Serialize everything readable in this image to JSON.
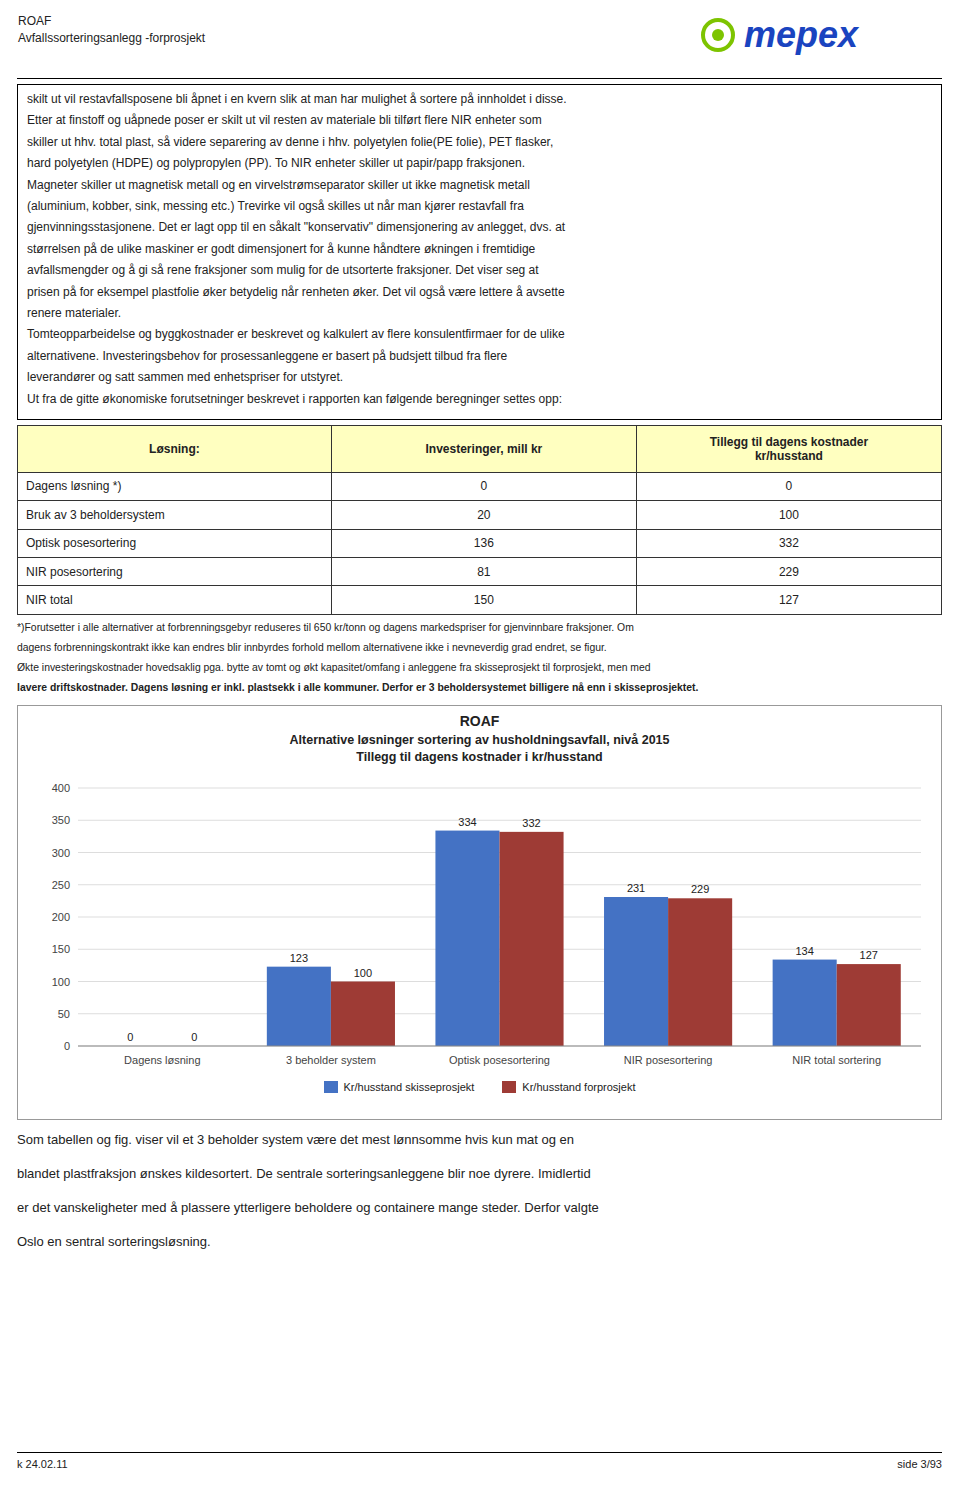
{
  "header": {
    "title": [
      "ROAF",
      "Avfallssorteringsanlegg -forprosjekt"
    ]
  },
  "logo": {
    "text": "mepex",
    "color": "#1A44C0",
    "mark_color": "#7DC400"
  },
  "body_lines": [
    "skilt ut vil restavfallsposene bli åpnet i en kvern slik at man har mulighet å sortere på innholdet i disse.",
    "Etter at finstoff og uåpnede poser er skilt ut vil resten av materiale bli tilført flere NIR enheter som",
    "skiller ut hhv. total plast, så videre separering av denne i hhv. polyetylen folie(PE folie), PET flasker,",
    "hard polyetylen (HDPE) og polypropylen (PP). To NIR enheter skiller ut papir/papp fraksjonen.",
    "Magneter skiller ut magnetisk metall og en virvelstrømseparator skiller ut ikke magnetisk metall",
    "(aluminium, kobber, sink, messing etc.) Trevirke vil også skilles ut når man kjører restavfall fra",
    "gjenvinningsstasjonene. Det er lagt opp til en såkalt \"konservativ\" dimensjonering av anlegget, dvs. at",
    "størrelsen på de ulike maskiner er godt dimensjonert for å kunne håndtere økningen i fremtidige",
    "avfallsmengder og å gi så rene fraksjoner som mulig for de utsorterte fraksjoner. Det viser seg at",
    "prisen på for eksempel plastfolie øker betydelig når renheten øker. Det vil også være lettere å avsette",
    "renere materialer.",
    "Tomteopparbeidelse og byggkostnader er beskrevet og kalkulert av flere konsulentfirmaer for de ulike",
    "alternativene. Investeringsbehov for prosessanleggene er basert på budsjett tilbud fra flere",
    "leverandører og satt sammen med enhetspriser for utstyret.",
    "Ut fra de gitte økonomiske forutsetninger beskrevet i rapporten kan følgende beregninger settes opp:"
  ],
  "table": {
    "header_color": "#FFFFC0",
    "header": [
      "Løsning:",
      "Investeringer, mill kr",
      "Tillegg til dagens kostnader\nkr/husstand"
    ],
    "rows": [
      [
        "Dagens løsning *)",
        "0",
        "0"
      ],
      [
        "Bruk av 3 beholdersystem",
        "20",
        "100"
      ],
      [
        "Optisk posesortering",
        "136",
        "332"
      ],
      [
        "NIR posesortering",
        "81",
        "229"
      ],
      [
        "NIR total",
        "150",
        "127"
      ]
    ]
  },
  "footnotes": [
    {
      "text": "*)Forutsetter i alle alternativer at forbrenningsgebyr reduseres til 650 kr/tonn og dagens markedspriser for gjenvinnbare fraksjoner. Om",
      "bold": false
    },
    {
      "text": "dagens forbrenningskontrakt ikke kan endres blir innbyrdes forhold mellom alternativene ikke i nevneverdig grad endret, se figur.",
      "bold": false
    },
    {
      "text": "Økte investeringskostnader hovedsaklig pga. bytte av tomt og økt kapasitet/omfang i anleggene fra skisseprosjekt til forprosjekt, men med",
      "bold": false
    },
    {
      "text": "lavere driftskostnader. Dagens løsning er inkl. plastsekk i alle kommuner. Derfor er 3 beholdersystemet billigere nå enn i skisseprosjektet.",
      "bold": true
    }
  ],
  "chart_data": {
    "type": "bar",
    "title": "ROAF",
    "subtitle": [
      "Alternative løsninger sortering av husholdningsavfall, nivå 2015",
      "Tillegg til dagens kostnader i kr/husstand"
    ],
    "categories": [
      "Dagens løsning",
      "3 beholder system",
      "Optisk posesortering",
      "NIR posesortering",
      "NIR total sortering"
    ],
    "series": [
      {
        "name": "Kr/husstand skisseprosjekt",
        "color": "#4472C4",
        "values": [
          0,
          123,
          334,
          231,
          134
        ]
      },
      {
        "name": "Kr/husstand forprosjekt",
        "color": "#9E3B35",
        "values": [
          0,
          100,
          332,
          229,
          127
        ]
      }
    ],
    "ylim": [
      0,
      400
    ],
    "yticks": [
      0,
      50,
      100,
      150,
      200,
      250,
      300,
      350,
      400
    ],
    "grid": true,
    "legend": "bottom",
    "data_labels": true
  },
  "bottom_lines": [
    "Som tabellen og fig. viser vil et 3 beholder system være det mest lønnsomme hvis kun mat og en",
    "blandet plastfraksjon ønskes kildesortert. De sentrale sorteringsanleggene blir noe dyrere. Imidlertid",
    "er det vanskeligheter med å plassere ytterligere beholdere og containere mange steder. Derfor valgte",
    "Oslo en sentral sorteringsløsning."
  ],
  "footer": {
    "left": "k 24.02.11",
    "right": "side 3/93"
  }
}
